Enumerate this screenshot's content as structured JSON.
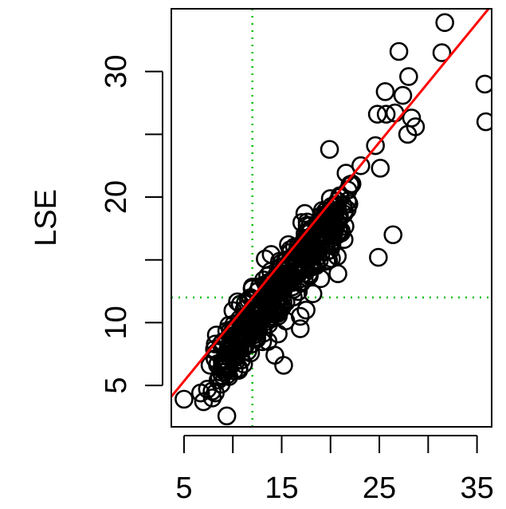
{
  "chart_data": {
    "type": "scatter",
    "title": "",
    "xlabel": "",
    "ylabel": "LSE",
    "xlim": [
      3.7,
      36.5
    ],
    "ylim": [
      1.7,
      35.0
    ],
    "x_ticks": [
      5,
      10,
      15,
      20,
      25,
      30,
      35
    ],
    "x_tick_labels": [
      "5",
      "",
      "15",
      "",
      "25",
      "",
      "35"
    ],
    "y_ticks": [
      5,
      10,
      15,
      20,
      25,
      30
    ],
    "y_tick_labels": [
      "5",
      "10",
      "",
      "20",
      "",
      "30"
    ],
    "grid": false,
    "colors": {
      "points": "#000000",
      "fit_line": "#ff0000",
      "reference_lines": "#00c000"
    },
    "fit_line": {
      "x": [
        3.7,
        36.5
      ],
      "y": [
        4.1,
        35.3
      ]
    },
    "reference_lines": {
      "vertical_x": 12,
      "horizontal_y": 12
    },
    "outliers": {
      "x": [
        5.0,
        6.7,
        7.0,
        7.4,
        7.9,
        8.2,
        19.9,
        24.8,
        24.9,
        25.6,
        25.7,
        26.4,
        26.6,
        27.0,
        27.4,
        27.9,
        28.0,
        28.3,
        28.7,
        31.4,
        31.7,
        35.8,
        35.9,
        24.6,
        25.1,
        23.1,
        22.0,
        21.7,
        21.1,
        20.1,
        19.6,
        19.0,
        18.2,
        17.5,
        16.9,
        13.6,
        14.3,
        15.2,
        10.6,
        11.1,
        9.6,
        8.8
      ],
      "y": [
        3.9,
        4.4,
        3.7,
        4.7,
        4.0,
        4.4,
        23.8,
        26.6,
        15.2,
        28.4,
        26.6,
        17.0,
        26.7,
        31.6,
        28.1,
        25.0,
        29.6,
        26.3,
        25.6,
        31.5,
        33.9,
        29.0,
        26.0,
        24.1,
        22.3,
        22.5,
        21.0,
        19.0,
        17.3,
        15.1,
        14.9,
        13.5,
        12.3,
        11.0,
        10.5,
        8.5,
        7.4,
        6.6,
        6.2,
        6.7,
        5.7,
        5.1
      ]
    }
  }
}
